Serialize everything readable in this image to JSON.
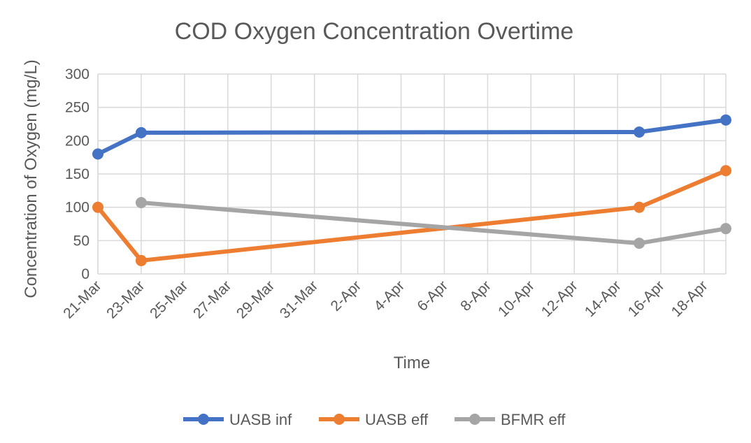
{
  "chart_data": {
    "type": "line",
    "title": "COD Oxygen Concentration Overtime",
    "xlabel": "Time",
    "ylabel": "Concentration of Oxygen (mg/L)",
    "ylim": [
      0,
      300
    ],
    "yticks": [
      0,
      50,
      100,
      150,
      200,
      250,
      300
    ],
    "xlim": [
      "2020-03-21",
      "2020-04-19"
    ],
    "xticks": [
      {
        "date": "2020-03-21",
        "label": "21-Mar"
      },
      {
        "date": "2020-03-23",
        "label": "23-Mar"
      },
      {
        "date": "2020-03-25",
        "label": "25-Mar"
      },
      {
        "date": "2020-03-27",
        "label": "27-Mar"
      },
      {
        "date": "2020-03-29",
        "label": "29-Mar"
      },
      {
        "date": "2020-03-31",
        "label": "31-Mar"
      },
      {
        "date": "2020-04-02",
        "label": "2-Apr"
      },
      {
        "date": "2020-04-04",
        "label": "4-Apr"
      },
      {
        "date": "2020-04-06",
        "label": "6-Apr"
      },
      {
        "date": "2020-04-08",
        "label": "8-Apr"
      },
      {
        "date": "2020-04-10",
        "label": "10-Apr"
      },
      {
        "date": "2020-04-12",
        "label": "12-Apr"
      },
      {
        "date": "2020-04-14",
        "label": "14-Apr"
      },
      {
        "date": "2020-04-16",
        "label": "16-Apr"
      },
      {
        "date": "2020-04-18",
        "label": "18-Apr"
      }
    ],
    "grid": true,
    "legend_position": "bottom",
    "series": [
      {
        "name": "UASB inf",
        "color": "#4472c4",
        "points": [
          {
            "x": "2020-03-21",
            "y": 180
          },
          {
            "x": "2020-03-23",
            "y": 212
          },
          {
            "x": "2020-04-15",
            "y": 213
          },
          {
            "x": "2020-04-19",
            "y": 231
          }
        ]
      },
      {
        "name": "UASB eff",
        "color": "#ed7d31",
        "points": [
          {
            "x": "2020-03-21",
            "y": 100
          },
          {
            "x": "2020-03-23",
            "y": 20
          },
          {
            "x": "2020-04-15",
            "y": 100
          },
          {
            "x": "2020-04-19",
            "y": 155
          }
        ]
      },
      {
        "name": "BFMR eff",
        "color": "#a5a5a5",
        "points": [
          {
            "x": "2020-03-23",
            "y": 107
          },
          {
            "x": "2020-04-15",
            "y": 46
          },
          {
            "x": "2020-04-19",
            "y": 68
          }
        ]
      }
    ]
  }
}
